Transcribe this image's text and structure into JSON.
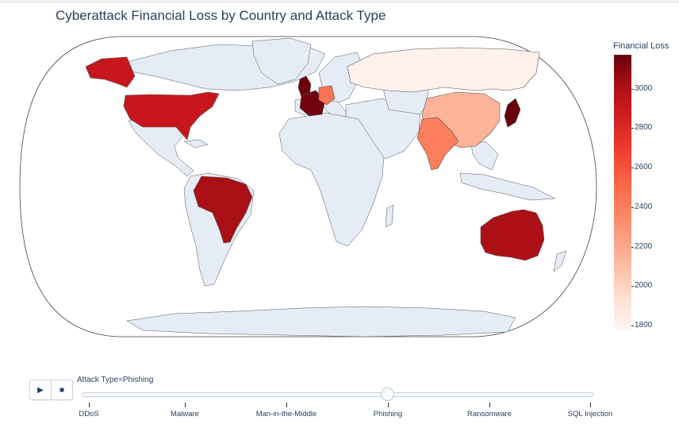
{
  "title": "Cyberattack Financial Loss by Country and Attack Type",
  "colorbar": {
    "title": "Financial Loss",
    "ticks": [
      "3000",
      "2800",
      "2600",
      "2400",
      "2200",
      "2000",
      "1800"
    ],
    "colorscale": [
      "#fff5f0",
      "#fee0d2",
      "#fcbba1",
      "#fc9272",
      "#fb6a4a",
      "#ef3b2c",
      "#cb181d",
      "#a50f15",
      "#67000d"
    ]
  },
  "map": {
    "projection": "robinson",
    "land_color": "#e5ecf6",
    "border_color": "#555555",
    "ocean_color": "#ffffff"
  },
  "chart_data": {
    "type": "choropleth",
    "metric": "Financial Loss",
    "zlim": [
      1770,
      3160
    ],
    "countries": [
      {
        "name": "United States",
        "value": 2830
      },
      {
        "name": "Brazil",
        "value": 2970
      },
      {
        "name": "United Kingdom",
        "value": 3150
      },
      {
        "name": "France",
        "value": 3130
      },
      {
        "name": "Germany",
        "value": 2420
      },
      {
        "name": "Russia",
        "value": 1800
      },
      {
        "name": "China",
        "value": 2150
      },
      {
        "name": "India",
        "value": 2380
      },
      {
        "name": "Japan",
        "value": 3160
      },
      {
        "name": "Australia",
        "value": 2950
      }
    ]
  },
  "controls": {
    "play_icon": "play-icon",
    "stop_icon": "stop-icon",
    "play_symbol": "▶",
    "stop_symbol": "■"
  },
  "slider": {
    "current_label": "Attack Type=Phishing",
    "active_index": 3,
    "steps": [
      "DDoS",
      "Malware",
      "Man-in-the-Middle",
      "Phishing",
      "Ransomware",
      "SQL Injection"
    ]
  }
}
